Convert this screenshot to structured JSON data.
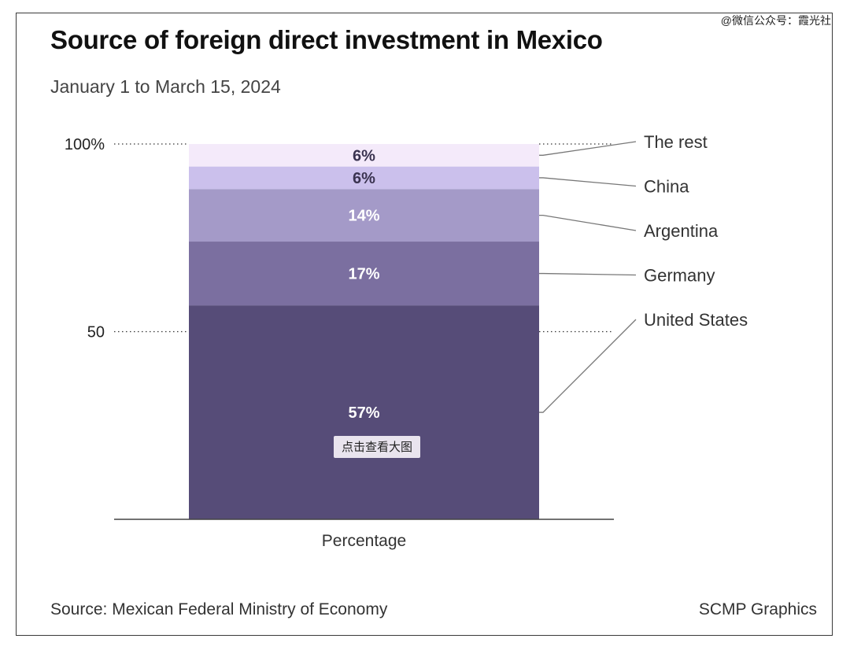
{
  "header": {
    "title": "Source of foreign direct investment in Mexico",
    "subtitle": "January 1 to March 15, 2024",
    "watermark": "@微信公众号：霞光社"
  },
  "footer": {
    "source": "Source: Mexican Federal Ministry of Economy",
    "credit": "SCMP Graphics"
  },
  "overlay": {
    "view_image_button": "点击查看大图"
  },
  "chart_data": {
    "type": "bar",
    "stacked": true,
    "categories": [
      "Percentage"
    ],
    "xlabel": "Percentage",
    "ylabel": "",
    "ylim": [
      0,
      100
    ],
    "yticks": [
      {
        "value": 100,
        "label": "100%"
      },
      {
        "value": 50,
        "label": "50"
      }
    ],
    "grid": "dotted reference lines at tick values",
    "series": [
      {
        "name": "United States",
        "values": [
          57
        ],
        "label": "57%",
        "color": "#564c78",
        "label_color": "#ffffff"
      },
      {
        "name": "Germany",
        "values": [
          17
        ],
        "label": "17%",
        "color": "#7b6fa0",
        "label_color": "#ffffff"
      },
      {
        "name": "Argentina",
        "values": [
          14
        ],
        "label": "14%",
        "color": "#a49ac8",
        "label_color": "#ffffff"
      },
      {
        "name": "China",
        "values": [
          6
        ],
        "label": "6%",
        "color": "#cbc0ec",
        "label_color": "#3a3350"
      },
      {
        "name": "The rest",
        "values": [
          6
        ],
        "label": "6%",
        "color": "#f4eafa",
        "label_color": "#3a3350"
      }
    ]
  }
}
